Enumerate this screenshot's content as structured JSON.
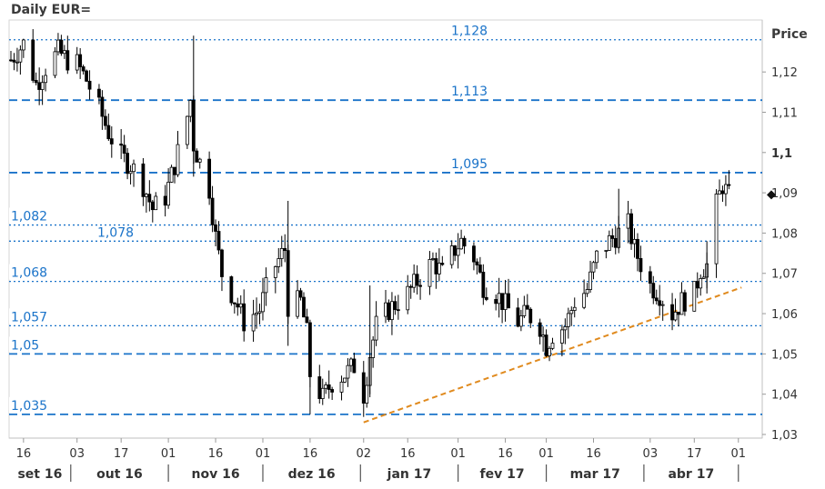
{
  "chart_data": {
    "type": "candlestick",
    "title": "Daily EUR=",
    "ylabel": "Price",
    "ylim": [
      1.03,
      1.132
    ],
    "y_ticks": [
      "1,03",
      "1,04",
      "1,05",
      "1,06",
      "1,07",
      "1,08",
      "1,09",
      "1,1",
      "1,11",
      "1,12"
    ],
    "last_price": 1.0895,
    "x_day_ticks": [
      "16",
      "03",
      "17",
      "01",
      "16",
      "01",
      "16",
      "02",
      "16",
      "01",
      "16",
      "01",
      "16",
      "03",
      "17",
      "01"
    ],
    "x_month_labels": [
      "set 16",
      "out 16",
      "nov 16",
      "dez 16",
      "jan 17",
      "fev 17",
      "mar 17",
      "abr 17"
    ],
    "levels": [
      {
        "label": "1,128",
        "value": 1.128,
        "style": "dotted",
        "label_pos": "mid"
      },
      {
        "label": "1,113",
        "value": 1.113,
        "style": "dashed",
        "label_pos": "mid"
      },
      {
        "label": "1,095",
        "value": 1.095,
        "style": "dashed",
        "label_pos": "mid"
      },
      {
        "label": "1,082",
        "value": 1.082,
        "style": "dotted",
        "label_pos": "left"
      },
      {
        "label": "1,078",
        "value": 1.078,
        "style": "dotted",
        "label_pos": "leftmid"
      },
      {
        "label": "1,068",
        "value": 1.068,
        "style": "dotted",
        "label_pos": "left"
      },
      {
        "label": "1,057",
        "value": 1.057,
        "style": "dotted",
        "label_pos": "left"
      },
      {
        "label": "1,05",
        "value": 1.05,
        "style": "dashed",
        "label_pos": "left"
      },
      {
        "label": "1,035",
        "value": 1.035,
        "style": "dashed",
        "label_pos": "left"
      }
    ],
    "trendline": {
      "from": [
        "2017-01-02",
        1.033
      ],
      "to": [
        "2017-05-02",
        1.0665
      ],
      "color": "#e08a1e"
    },
    "start_date": "2016-09-12",
    "end_date": "2017-05-08",
    "date_ticks": [
      "2016-09-16",
      "2016-10-03",
      "2016-10-17",
      "2016-11-01",
      "2016-11-16",
      "2016-12-01",
      "2016-12-16",
      "2017-01-02",
      "2017-01-16",
      "2017-02-01",
      "2017-02-16",
      "2017-03-01",
      "2017-03-16",
      "2017-04-03",
      "2017-04-17",
      "2017-05-01"
    ],
    "close_path": [
      [
        "2016-09-12",
        1.123
      ],
      [
        "2016-09-16",
        1.127
      ],
      [
        "2016-09-20",
        1.117
      ],
      [
        "2016-09-23",
        1.121
      ],
      [
        "2016-09-27",
        1.125
      ],
      [
        "2016-09-30",
        1.123
      ],
      [
        "2016-10-03",
        1.122
      ],
      [
        "2016-10-06",
        1.118
      ],
      [
        "2016-10-10",
        1.111
      ],
      [
        "2016-10-13",
        1.105
      ],
      [
        "2016-10-17",
        1.099
      ],
      [
        "2016-10-20",
        1.097
      ],
      [
        "2016-10-24",
        1.092
      ],
      [
        "2016-10-27",
        1.086
      ],
      [
        "2016-10-31",
        1.089
      ],
      [
        "2016-11-03",
        1.097
      ],
      [
        "2016-11-07",
        1.109
      ],
      [
        "2016-11-08",
        1.113
      ],
      [
        "2016-11-09",
        1.102
      ],
      [
        "2016-11-14",
        1.091
      ],
      [
        "2016-11-16",
        1.079
      ],
      [
        "2016-11-18",
        1.07
      ],
      [
        "2016-11-23",
        1.062
      ],
      [
        "2016-11-25",
        1.058
      ],
      [
        "2016-11-30",
        1.061
      ],
      [
        "2016-12-02",
        1.066
      ],
      [
        "2016-12-05",
        1.072
      ],
      [
        "2016-12-08",
        1.076
      ],
      [
        "2016-12-09",
        1.062
      ],
      [
        "2016-12-13",
        1.063
      ],
      [
        "2016-12-15",
        1.055
      ],
      [
        "2016-12-16",
        1.045
      ],
      [
        "2016-12-20",
        1.039
      ],
      [
        "2016-12-23",
        1.043
      ],
      [
        "2016-12-27",
        1.045
      ],
      [
        "2016-12-30",
        1.047
      ],
      [
        "2017-01-02",
        1.04
      ],
      [
        "2017-01-04",
        1.05
      ],
      [
        "2017-01-06",
        1.057
      ],
      [
        "2017-01-10",
        1.061
      ],
      [
        "2017-01-13",
        1.063
      ],
      [
        "2017-01-16",
        1.065
      ],
      [
        "2017-01-19",
        1.068
      ],
      [
        "2017-01-24",
        1.073
      ],
      [
        "2017-01-27",
        1.07
      ],
      [
        "2017-01-31",
        1.076
      ],
      [
        "2017-02-02",
        1.078
      ],
      [
        "2017-02-06",
        1.074
      ],
      [
        "2017-02-09",
        1.067
      ],
      [
        "2017-02-13",
        1.065
      ],
      [
        "2017-02-16",
        1.062
      ],
      [
        "2017-02-20",
        1.058
      ],
      [
        "2017-02-23",
        1.06
      ],
      [
        "2017-02-27",
        1.057
      ],
      [
        "2017-03-01",
        1.052
      ],
      [
        "2017-03-03",
        1.055
      ],
      [
        "2017-03-07",
        1.057
      ],
      [
        "2017-03-10",
        1.063
      ],
      [
        "2017-03-14",
        1.066
      ],
      [
        "2017-03-17",
        1.074
      ],
      [
        "2017-03-21",
        1.078
      ],
      [
        "2017-03-24",
        1.08
      ],
      [
        "2017-03-27",
        1.082
      ],
      [
        "2017-03-29",
        1.076
      ],
      [
        "2017-04-03",
        1.067
      ],
      [
        "2017-04-06",
        1.065
      ],
      [
        "2017-04-10",
        1.06
      ],
      [
        "2017-04-13",
        1.063
      ],
      [
        "2017-04-17",
        1.065
      ],
      [
        "2017-04-19",
        1.071
      ],
      [
        "2017-04-21",
        1.072
      ],
      [
        "2017-04-24",
        1.087
      ],
      [
        "2017-04-26",
        1.092
      ],
      [
        "2017-04-28",
        1.089
      ]
    ]
  },
  "colors": {
    "level_line": "#1a73c9",
    "trendline": "#e08a1e",
    "candle": "#000000",
    "axis_text": "#333333"
  }
}
